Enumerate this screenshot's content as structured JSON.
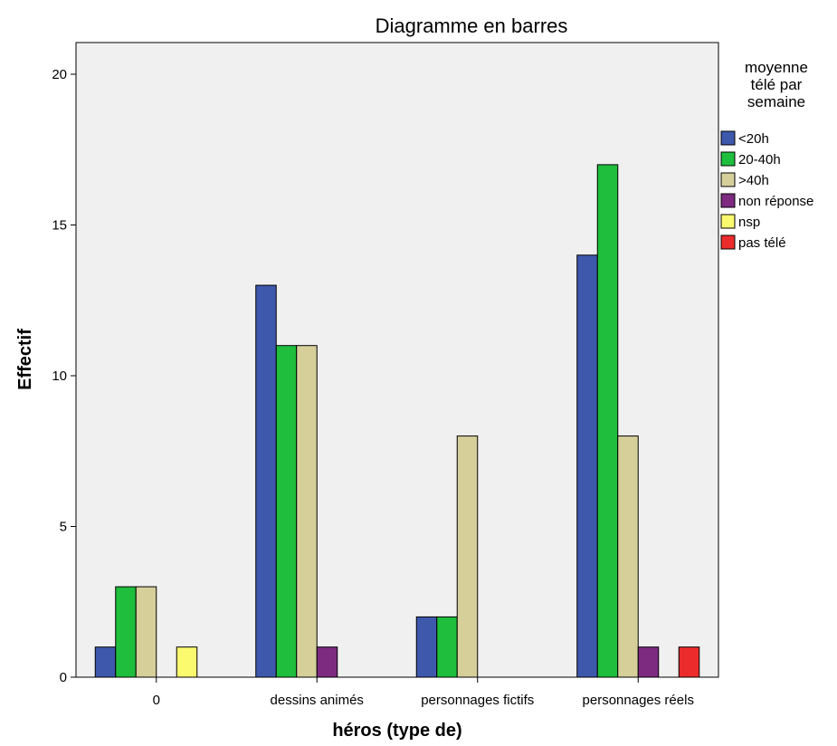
{
  "chart_data": {
    "type": "bar",
    "title": "Diagramme en barres",
    "xlabel": "héros (type de)",
    "ylabel": "Effectif",
    "ylim": [
      0,
      22
    ],
    "yticks": [
      0,
      5,
      10,
      15,
      20
    ],
    "categories": [
      "0",
      "dessins animés",
      "personnages fictifs",
      "personnages réels"
    ],
    "legend_title": "moyenne télé par semaine",
    "legend_position": "right",
    "grid": false,
    "plot_background": "#f0f0f0",
    "series": [
      {
        "name": "<20h",
        "color": "#3e58ac",
        "values": [
          1,
          13,
          2,
          14
        ]
      },
      {
        "name": "20-40h",
        "color": "#1fbe3c",
        "values": [
          3,
          11,
          2,
          17
        ]
      },
      {
        "name": ">40h",
        "color": "#d6cf9a",
        "values": [
          3,
          11,
          8,
          8
        ]
      },
      {
        "name": "non réponse",
        "color": "#7d2a81",
        "values": [
          0,
          1,
          0,
          1
        ]
      },
      {
        "name": "nsp",
        "color": "#fbf96e",
        "values": [
          1,
          0,
          0,
          0
        ]
      },
      {
        "name": "pas télé",
        "color": "#ec2c2c",
        "values": [
          0,
          0,
          0,
          1
        ]
      }
    ]
  }
}
